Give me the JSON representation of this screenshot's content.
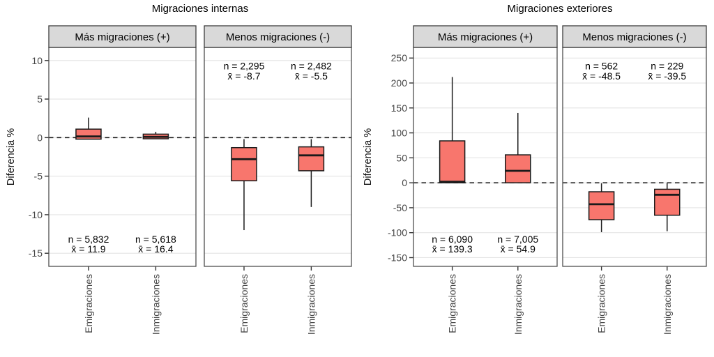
{
  "colors": {
    "background": "#ffffff",
    "box_fill": "#f8766d",
    "box_line": "#1a1a1a",
    "strip_bg": "#d9d9d9",
    "strip_border": "#3d3d3d",
    "panel_border": "#4d4d4d",
    "grid": "#e4e4e4",
    "axis_text": "#474747",
    "tick_mark": "#333333",
    "annotation_text": "#000000"
  },
  "chart_data": [
    {
      "type": "boxplot",
      "title": "Migraciones internas",
      "ylabel": "Diferencia %",
      "yticks": [
        10,
        5,
        0,
        -5,
        -10,
        -15
      ],
      "ylim": [
        -16.7,
        11.7
      ],
      "zero_line": 0,
      "categories": [
        "Emigraciones",
        "Inmigraciones"
      ],
      "facets": [
        {
          "label": "Más migraciones (+)",
          "annotation_position": "bottom",
          "boxes": [
            {
              "category": "Emigraciones",
              "whisker_low": -0.2,
              "q1": -0.2,
              "median": 0.15,
              "q3": 1.1,
              "whisker_high": 2.6,
              "n_label": "n = 5,832",
              "mean_label": "x̄ = 11.9"
            },
            {
              "category": "Inmigraciones",
              "whisker_low": -0.15,
              "q1": -0.15,
              "median": 0.1,
              "q3": 0.45,
              "whisker_high": 0.75,
              "n_label": "n = 5,618",
              "mean_label": "x̄ = 16.4"
            }
          ]
        },
        {
          "label": "Menos migraciones (-)",
          "annotation_position": "top",
          "boxes": [
            {
              "category": "Emigraciones",
              "whisker_low": -12.0,
              "q1": -5.6,
              "median": -2.8,
              "q3": -1.3,
              "whisker_high": -0.2,
              "n_label": "n = 2,295",
              "mean_label": "x̄ = -8.7"
            },
            {
              "category": "Inmigraciones",
              "whisker_low": -9.0,
              "q1": -4.3,
              "median": -2.3,
              "q3": -1.2,
              "whisker_high": -0.2,
              "n_label": "n = 2,482",
              "mean_label": "x̄ = -5.5"
            }
          ]
        }
      ]
    },
    {
      "type": "boxplot",
      "title": "Migraciones exteriores",
      "ylabel": "Diferencia %",
      "yticks": [
        250,
        200,
        150,
        100,
        50,
        0,
        -50,
        -100,
        -150
      ],
      "ylim": [
        -167.5,
        271.3
      ],
      "zero_line": 0,
      "categories": [
        "Emigraciones",
        "Inmigraciones"
      ],
      "facets": [
        {
          "label": "Más migraciones (+)",
          "annotation_position": "bottom",
          "boxes": [
            {
              "category": "Emigraciones",
              "whisker_low": 0,
              "q1": 0,
              "median": 2,
              "q3": 84,
              "whisker_high": 212,
              "n_label": "n = 6,090",
              "mean_label": "x̄ = 139.3"
            },
            {
              "category": "Inmigraciones",
              "whisker_low": 0,
              "q1": 0,
              "median": 24,
              "q3": 56,
              "whisker_high": 140,
              "n_label": "n = 7,005",
              "mean_label": "x̄ = 54.9"
            }
          ]
        },
        {
          "label": "Menos migraciones (-)",
          "annotation_position": "top",
          "boxes": [
            {
              "category": "Emigraciones",
              "whisker_low": -99,
              "q1": -74,
              "median": -43,
              "q3": -18,
              "whisker_high": -1,
              "n_label": "n = 562",
              "mean_label": "x̄ = -48.5"
            },
            {
              "category": "Inmigraciones",
              "whisker_low": -97,
              "q1": -65,
              "median": -24,
              "q3": -13,
              "whisker_high": -1,
              "n_label": "n = 229",
              "mean_label": "x̄ = -39.5"
            }
          ]
        }
      ]
    }
  ]
}
